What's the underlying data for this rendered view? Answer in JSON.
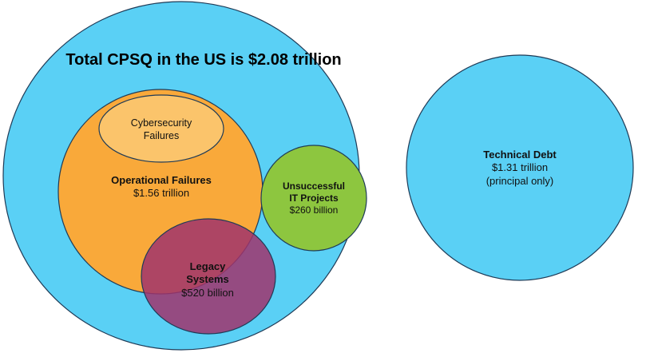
{
  "colors": {
    "cpsq_fill": "#5ad0f5",
    "operational_fill": "#f9a93a",
    "cybersecurity_fill": "#fbc46b",
    "unsuccessful_fill": "#8dc63f",
    "legacy_fill": "#a0346c",
    "outline": "#1f3b57"
  },
  "title": "Total CPSQ in the US is $2.08 trillion",
  "cybersecurity": {
    "line1": "Cybersecurity",
    "line2": "Failures"
  },
  "operational": {
    "name": "Operational Failures",
    "value": "$1.56 trillion"
  },
  "unsuccessful": {
    "line1": "Unsuccessful",
    "line2": "IT Projects",
    "value": "$260 billion"
  },
  "legacy": {
    "line1": "Legacy",
    "line2": "Systems",
    "value": "$520 billion"
  },
  "technical_debt": {
    "name": "Technical Debt",
    "value": "$1.31 trillion",
    "note": "(principal only)"
  }
}
